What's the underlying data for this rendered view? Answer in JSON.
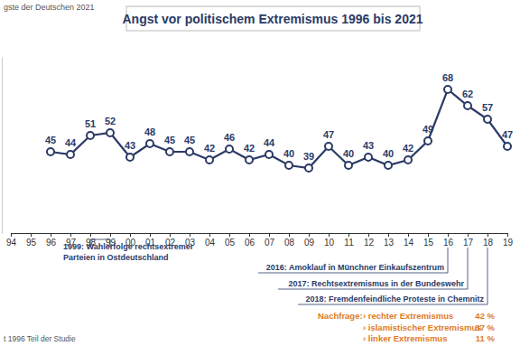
{
  "chart_data": {
    "type": "line",
    "title": "Angst vor politischem Extremismus 1996 bis 2021",
    "subtitle": "gste der Deutschen 2021",
    "categories": [
      "94",
      "95",
      "96",
      "97",
      "98",
      "99",
      "00",
      "01",
      "02",
      "03",
      "04",
      "05",
      "06",
      "07",
      "08",
      "09",
      "10",
      "11",
      "12",
      "13",
      "14",
      "15",
      "16",
      "17",
      "18",
      "19"
    ],
    "values": [
      null,
      null,
      45,
      44,
      51,
      52,
      43,
      48,
      45,
      45,
      42,
      46,
      42,
      44,
      40,
      39,
      47,
      40,
      43,
      40,
      42,
      49,
      68,
      62,
      57,
      47
    ],
    "color": "#2b3a67",
    "marker": "circle",
    "data_labels": true,
    "tick_labels": "x",
    "ylim": [
      15,
      80
    ],
    "annotations": [
      {
        "at": [
          "98",
          "99"
        ],
        "lines": [
          "1999: Wahlerfolge rechtsextremer",
          "Parteien in Ostdeutschland"
        ]
      },
      {
        "at": [
          "16"
        ],
        "lines": [
          "2016: Amoklauf in Münchner Einkaufszentrum"
        ]
      },
      {
        "at": [
          "17"
        ],
        "lines": [
          "2017: Rechtsextremismus in der Bundeswehr"
        ]
      },
      {
        "at": [
          "18"
        ],
        "lines": [
          "2018: Fremdenfeindliche Proteste in Chemnitz"
        ]
      }
    ],
    "followup": {
      "title": "Nachfrage:",
      "items": [
        {
          "label": "› rechter Extremismus",
          "value_label": "42 %"
        },
        {
          "label": "› islamistischer Extremismus",
          "value_label": "37 %"
        },
        {
          "label": "› linker Extremismus",
          "value_label": "11 %"
        }
      ]
    },
    "note": "t 1996 Teil der Studie"
  }
}
